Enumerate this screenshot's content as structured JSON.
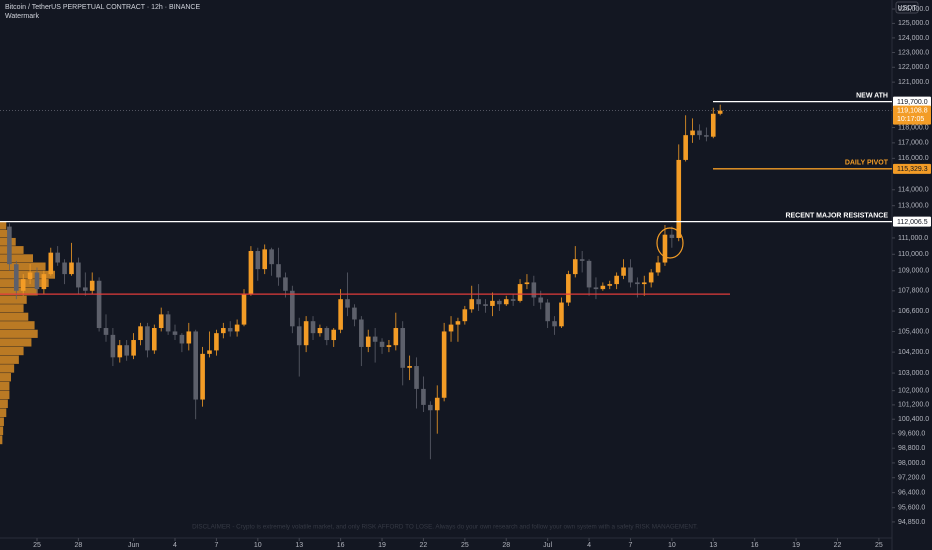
{
  "chart_data": {
    "type": "candlestick",
    "title": "Bitcoin / TetherUS PERPETUAL CONTRACT · 12h · BINANCE",
    "subtitle": "Watermark",
    "y_axis_label": "USDT",
    "log_scale": true,
    "grid": false,
    "up_color": "#f39c26",
    "down_color": "#5d606b",
    "open": [
      111700,
      109400,
      107800,
      108500,
      108900,
      107900,
      108800,
      110100,
      109500,
      108800,
      109500,
      108000,
      107800,
      108400,
      105600,
      105200,
      103900,
      104600,
      104000,
      104900,
      105700,
      104300,
      105600,
      106400,
      105400,
      105200,
      104700,
      105400,
      101500,
      104100,
      104300,
      105300,
      105600,
      105400,
      105800,
      107600,
      110200,
      109100,
      110300,
      109400,
      108600,
      107800,
      105700,
      104600,
      106000,
      105300,
      105600,
      104900,
      105500,
      107300,
      106800,
      106100,
      104500,
      105100,
      104800,
      104500,
      104600,
      105600,
      103300,
      103400,
      102100,
      101200,
      100900,
      101600,
      105400,
      105800,
      106000,
      106700,
      107300,
      107000,
      106900,
      107200,
      107000,
      107300,
      107200,
      108200,
      108300,
      107400,
      107100,
      106000,
      105700,
      107100,
      108800,
      109700,
      109600,
      108000,
      107900,
      108100,
      108200,
      108700,
      109200,
      108300,
      108200,
      108300,
      108900,
      109500,
      111200,
      111000,
      115900,
      117500,
      117800,
      117500,
      117400,
      118900
    ],
    "high": [
      111900,
      109600,
      108800,
      109400,
      109200,
      109000,
      110400,
      110500,
      109700,
      110700,
      109800,
      108900,
      108900,
      108600,
      106400,
      105600,
      104900,
      104900,
      105300,
      105900,
      105900,
      105800,
      106800,
      106600,
      105800,
      105300,
      105900,
      105500,
      104500,
      105400,
      105500,
      105900,
      106000,
      106100,
      107900,
      110500,
      110400,
      110600,
      110400,
      110400,
      108900,
      108100,
      106200,
      106300,
      106300,
      105800,
      105700,
      105600,
      107900,
      108900,
      107000,
      106300,
      105500,
      105600,
      105000,
      104900,
      106500,
      106000,
      104000,
      103900,
      102800,
      101400,
      102300,
      105900,
      106300,
      106200,
      106900,
      108100,
      108200,
      107300,
      107700,
      107300,
      107500,
      107600,
      108500,
      108800,
      108700,
      107800,
      107300,
      106300,
      107400,
      109000,
      110500,
      110200,
      109700,
      108600,
      108300,
      108400,
      108900,
      109700,
      109700,
      108600,
      108700,
      109100,
      109900,
      111800,
      111700,
      116900,
      118800,
      118600,
      118200,
      118000,
      119300,
      119500
    ],
    "low": [
      109000,
      107300,
      107500,
      108200,
      107600,
      107600,
      108700,
      109300,
      108200,
      108700,
      107600,
      107500,
      107600,
      105400,
      104800,
      103400,
      103600,
      103700,
      103800,
      104600,
      103900,
      104100,
      105400,
      105200,
      104900,
      104200,
      104300,
      100400,
      101100,
      103900,
      104000,
      105000,
      105100,
      105100,
      105700,
      107500,
      108400,
      108800,
      108700,
      108100,
      107400,
      105300,
      102800,
      104200,
      104900,
      105100,
      104600,
      104500,
      105300,
      106300,
      105700,
      103400,
      104200,
      103600,
      104100,
      104200,
      104300,
      102300,
      102600,
      101000,
      100800,
      98200,
      99600,
      101400,
      104800,
      104800,
      105800,
      106500,
      106600,
      106500,
      106300,
      106600,
      106900,
      106900,
      107100,
      107900,
      106900,
      106700,
      105600,
      105200,
      105600,
      106900,
      108600,
      108900,
      107500,
      107300,
      107800,
      107900,
      107900,
      108500,
      108000,
      107400,
      107500,
      108000,
      108700,
      109300,
      110400,
      110800,
      115800,
      117000,
      117200,
      117100,
      117300,
      118800
    ],
    "close": [
      109400,
      107800,
      108500,
      108900,
      107900,
      108800,
      110100,
      109500,
      108800,
      109500,
      108000,
      107800,
      108400,
      105600,
      105200,
      103900,
      104600,
      104000,
      104900,
      105700,
      104300,
      105600,
      106400,
      105400,
      105200,
      104700,
      105400,
      101500,
      104100,
      104300,
      105300,
      105600,
      105400,
      105800,
      107600,
      110200,
      109100,
      110300,
      109400,
      108600,
      107800,
      105700,
      104600,
      106000,
      105300,
      105600,
      104900,
      105500,
      107300,
      106800,
      106100,
      104500,
      105100,
      104800,
      104500,
      104600,
      105600,
      103300,
      103400,
      102100,
      101200,
      100900,
      101600,
      105400,
      105800,
      106000,
      106700,
      107300,
      107000,
      106900,
      107200,
      107000,
      107300,
      107200,
      108200,
      108300,
      107400,
      107100,
      106000,
      105700,
      107100,
      108800,
      109700,
      109600,
      108000,
      107900,
      108100,
      108200,
      108700,
      109200,
      108300,
      108200,
      108300,
      108900,
      109500,
      111200,
      111000,
      115900,
      117500,
      117800,
      117500,
      117400,
      118900,
      119108.8
    ],
    "xlim": [
      -1.36,
      127.9
    ],
    "xticks": [
      {
        "value": 4,
        "label": "25"
      },
      {
        "value": 10,
        "label": "28"
      },
      {
        "value": 18,
        "label": "Jun"
      },
      {
        "value": 24,
        "label": "4"
      },
      {
        "value": 30,
        "label": "7"
      },
      {
        "value": 36,
        "label": "10"
      },
      {
        "value": 42,
        "label": "13"
      },
      {
        "value": 48,
        "label": "16"
      },
      {
        "value": 54,
        "label": "19"
      },
      {
        "value": 60,
        "label": "22"
      },
      {
        "value": 66,
        "label": "25"
      },
      {
        "value": 72,
        "label": "28"
      },
      {
        "value": 78,
        "label": "Jul"
      },
      {
        "value": 84,
        "label": "4"
      },
      {
        "value": 90,
        "label": "7"
      },
      {
        "value": 96,
        "label": "10"
      },
      {
        "value": 102,
        "label": "13"
      },
      {
        "value": 108,
        "label": "16"
      },
      {
        "value": 114,
        "label": "19"
      },
      {
        "value": 120,
        "label": "22"
      },
      {
        "value": 126,
        "label": "25"
      }
    ],
    "ylim": [
      94010,
      126630
    ],
    "yticks": [
      {
        "value": 126000,
        "label": "126,000.0"
      },
      {
        "value": 125000,
        "label": "125,000.0"
      },
      {
        "value": 124000,
        "label": "124,000.0"
      },
      {
        "value": 123000,
        "label": "123,000.0"
      },
      {
        "value": 122000,
        "label": "122,000.0"
      },
      {
        "value": 121000,
        "label": "121,000.0"
      },
      {
        "value": 118000,
        "label": "118,000.0"
      },
      {
        "value": 117000,
        "label": "117,000.0"
      },
      {
        "value": 116000,
        "label": "116,000.0"
      },
      {
        "value": 114000,
        "label": "114,000.0"
      },
      {
        "value": 113000,
        "label": "113,000.0"
      },
      {
        "value": 111000,
        "label": "111,000.0"
      },
      {
        "value": 110000,
        "label": "110,000.0"
      },
      {
        "value": 109000,
        "label": "109,000.0"
      },
      {
        "value": 107800,
        "label": "107,800.0"
      },
      {
        "value": 106600,
        "label": "106,600.0"
      },
      {
        "value": 105400,
        "label": "105,400.0"
      },
      {
        "value": 104200,
        "label": "104,200.0"
      },
      {
        "value": 103000,
        "label": "103,000.0"
      },
      {
        "value": 102000,
        "label": "102,000.0"
      },
      {
        "value": 101200,
        "label": "101,200.0"
      },
      {
        "value": 100400,
        "label": "100,400.0"
      },
      {
        "value": 99600,
        "label": "99,600.0"
      },
      {
        "value": 98800,
        "label": "98,800.0"
      },
      {
        "value": 98000,
        "label": "98,000.0"
      },
      {
        "value": 97200,
        "label": "97,200.0"
      },
      {
        "value": 96400,
        "label": "96,400.0"
      },
      {
        "value": 95600,
        "label": "95,600.0"
      },
      {
        "value": 94850,
        "label": "94,850.0"
      }
    ],
    "levels": [
      {
        "name": "NEW ATH",
        "value": 119700,
        "value_label": "119,700.0",
        "color": "#ffffff"
      },
      {
        "name": "DAILY PIVOT",
        "value": 115329.3,
        "value_label": "115,329.3",
        "color": "#f39c26"
      },
      {
        "name": "RECENT MAJOR RESISTANCE",
        "value": 112006.5,
        "value_label": "112,006.5",
        "color": "#ffffff"
      },
      {
        "value": 107600,
        "color": "#e03b3b"
      }
    ],
    "last_price": {
      "value": 119108.8,
      "label": "119,108.8",
      "countdown": "10:17:05",
      "color": "#f39c26"
    },
    "volume_profile": {
      "color": "#f39c26",
      "prices": [
        99250,
        99750,
        100250,
        100750,
        101250,
        101750,
        102250,
        102750,
        103250,
        103750,
        104250,
        104750,
        105250,
        105750,
        106250,
        106750,
        107250,
        107750,
        108250,
        108750,
        109250,
        109750,
        110250,
        110750,
        111250,
        111750
      ],
      "values": [
        3,
        4,
        5,
        8,
        10,
        12,
        12,
        14,
        18,
        24,
        30,
        40,
        48,
        44,
        36,
        30,
        34,
        48,
        62,
        70,
        58,
        42,
        30,
        20,
        12,
        8
      ]
    },
    "disclaimer": "DISCLAIMER - Crypto is extremely volatile market, and only RISK AFFORD TO LOSE. Always do your own research and follow your own system with a safety RISK MANAGEMENT."
  }
}
